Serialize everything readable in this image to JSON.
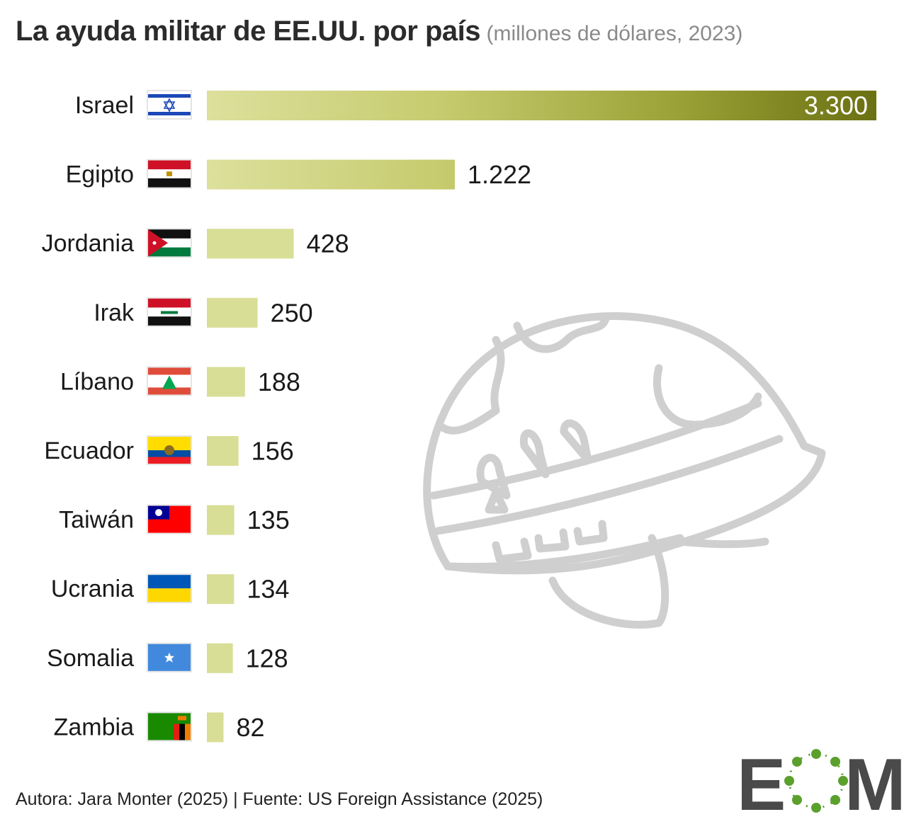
{
  "title": "La ayuda militar de EE.UU. por país",
  "subtitle": "(millones de dólares, 2023)",
  "footer": "Autora: Jara Monter (2025) | Fuente: US Foreign Assistance (2025)",
  "logo_text": "EOM",
  "colors": {
    "bar_light": "#d9de97",
    "bar_dark": "#6f7514",
    "helmet": "#cfcfcf",
    "logo_gray": "#4a4a4a",
    "logo_green": "#5aa02c"
  },
  "chart_data": {
    "type": "bar",
    "orientation": "horizontal",
    "categories": [
      "Israel",
      "Egipto",
      "Jordania",
      "Irak",
      "Líbano",
      "Ecuador",
      "Taiwán",
      "Ucrania",
      "Somalia",
      "Zambia"
    ],
    "values": [
      3300,
      1222,
      428,
      250,
      188,
      156,
      135,
      134,
      128,
      82
    ],
    "value_labels": [
      "3.300",
      "1.222",
      "428",
      "250",
      "188",
      "156",
      "135",
      "134",
      "128",
      "82"
    ],
    "flags": [
      "israel-flag",
      "egypt-flag",
      "jordan-flag",
      "iraq-flag",
      "lebanon-flag",
      "ecuador-flag",
      "taiwan-flag",
      "ukraine-flag",
      "somalia-flag",
      "zambia-flag"
    ],
    "title": "La ayuda militar de EE.UU. por país",
    "subtitle": "(millones de dólares, 2023)",
    "xlim": [
      0,
      3300
    ],
    "grid": false,
    "legend": "none"
  }
}
